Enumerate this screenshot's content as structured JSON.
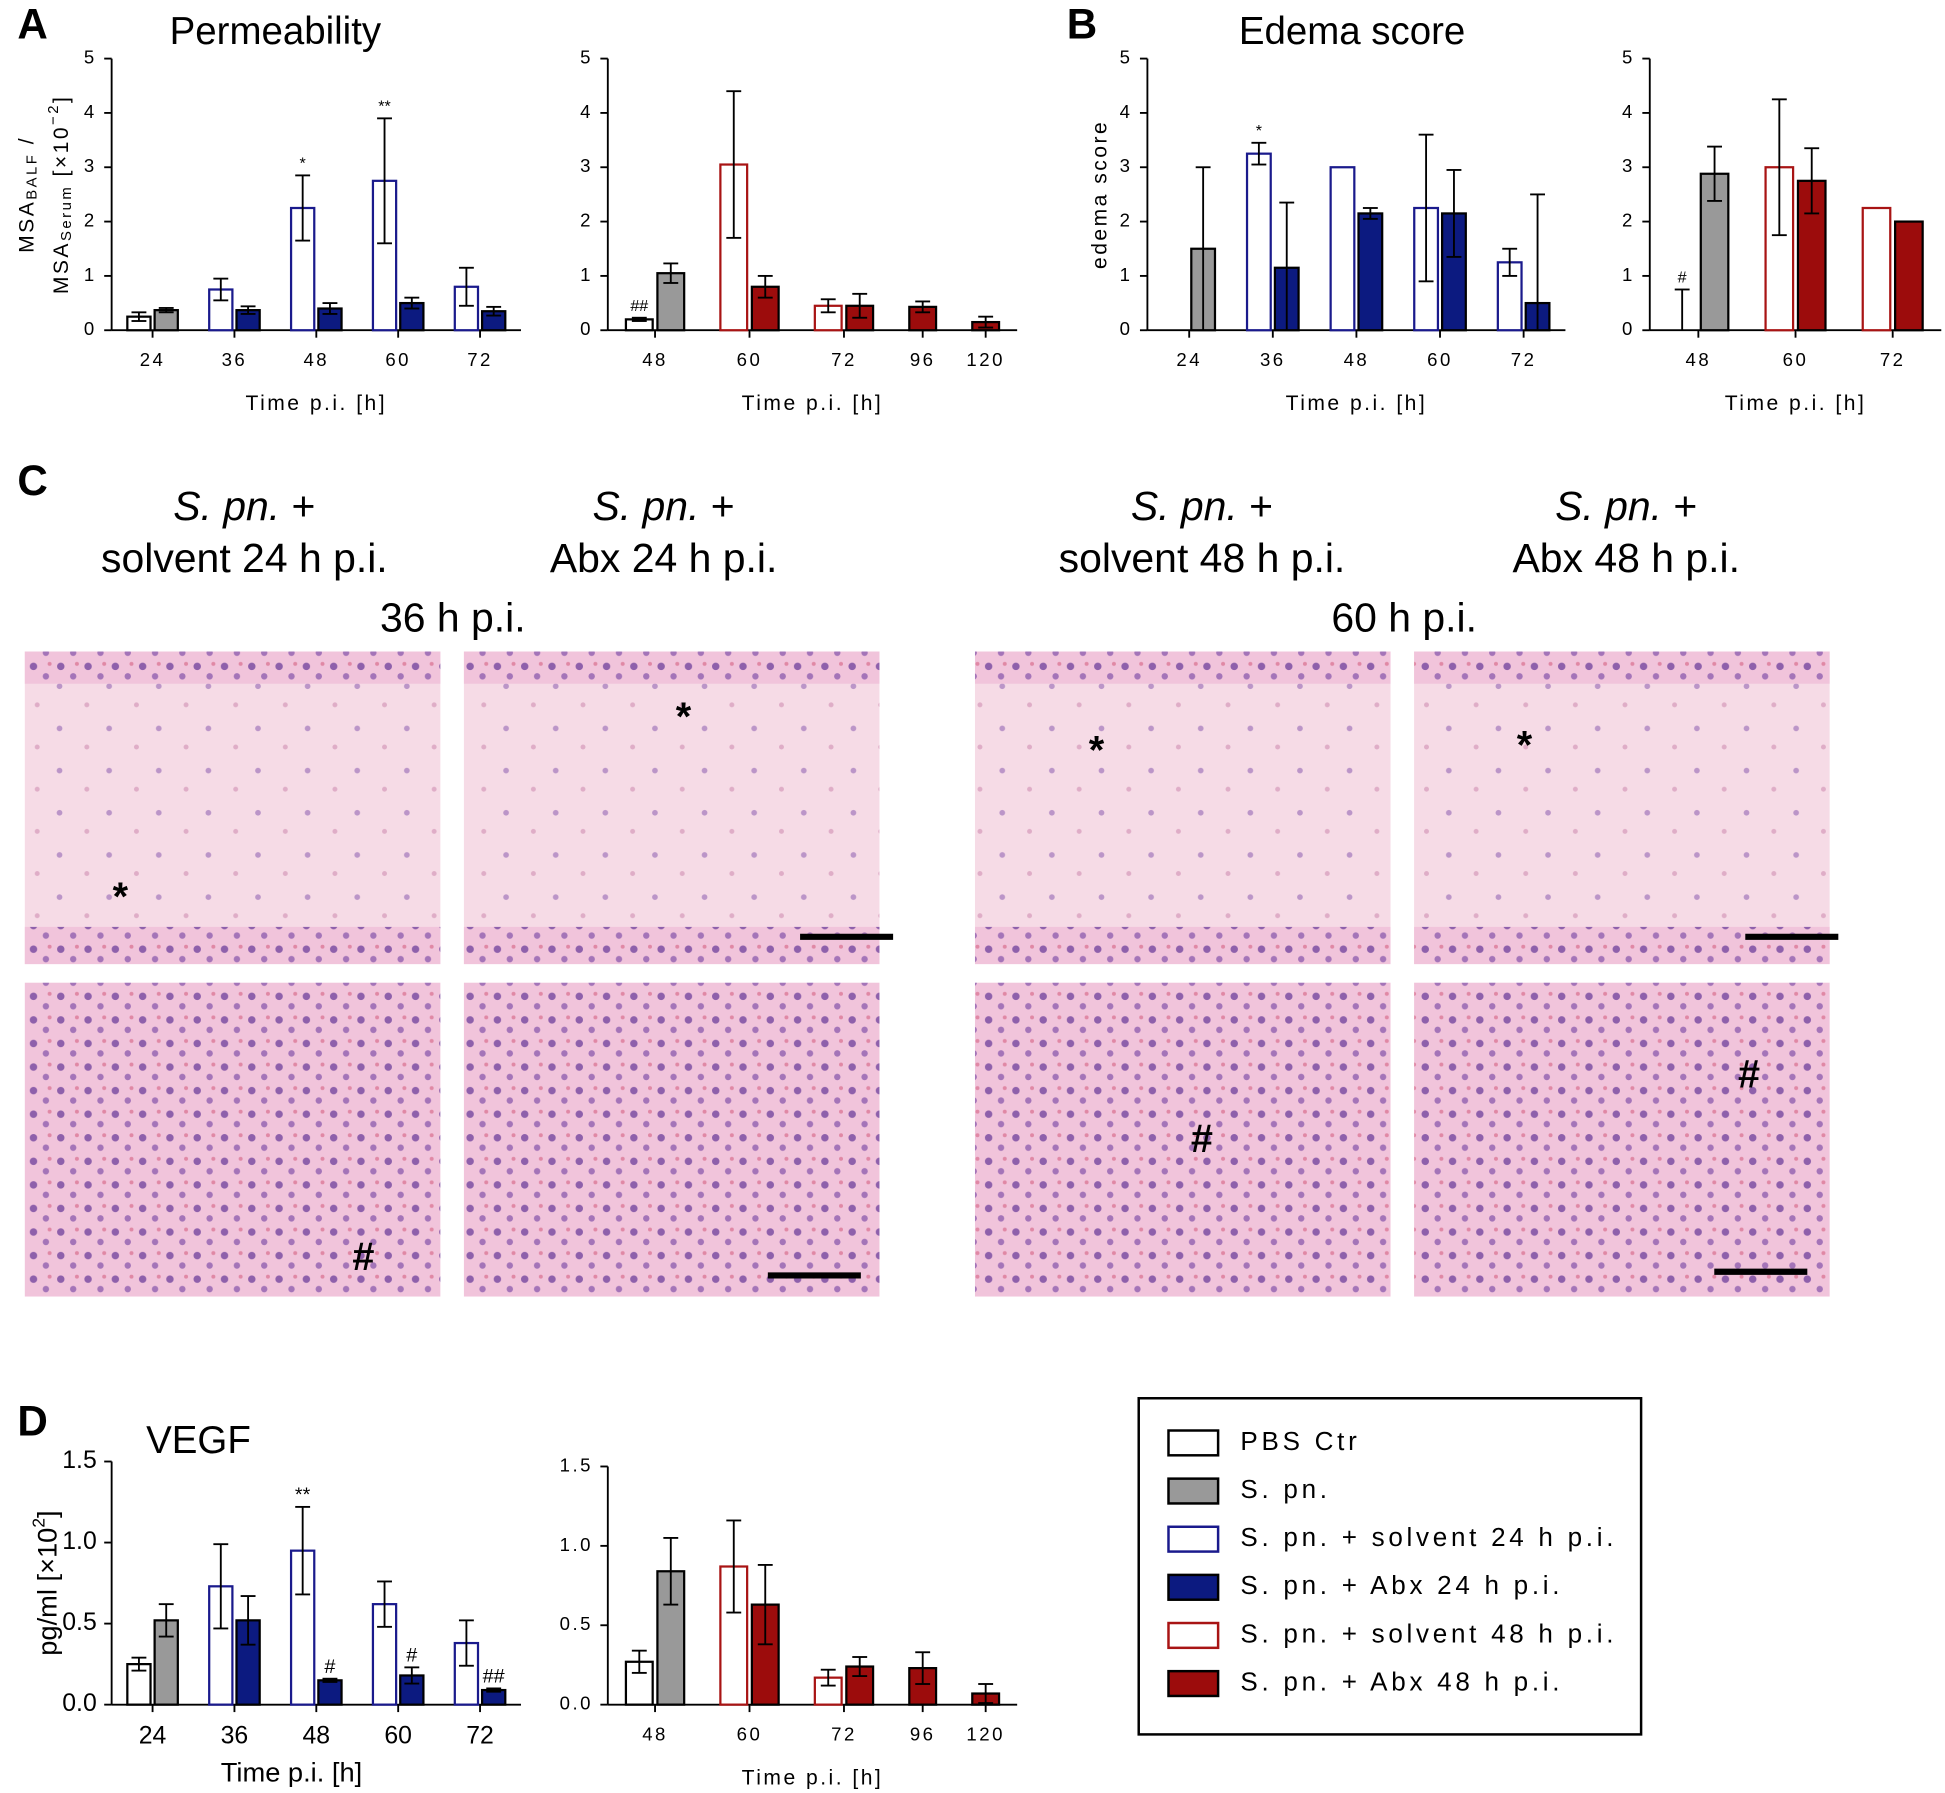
{
  "figure": {
    "panel_labels": [
      "A",
      "B",
      "C",
      "D"
    ]
  },
  "chart_data": [
    {
      "type": "bar",
      "title": "Permeability",
      "ylabel": [
        [
          "MSA",
          "BALF",
          " /"
        ],
        [
          "MSA",
          "Serum",
          " [×10",
          "−2",
          "]"
        ]
      ],
      "xlabel": "Time p.i. [h]",
      "categories": [
        "24",
        "36",
        "48",
        "60",
        "72"
      ],
      "ylim": [
        0,
        5
      ],
      "yticks": [
        0,
        1,
        2,
        3,
        4,
        5
      ],
      "series": [
        {
          "name": "PBS Ctr",
          "values": [
            0.25,
            null,
            null,
            null,
            null
          ],
          "errors": [
            0.08,
            null,
            null,
            null,
            null
          ],
          "annotations": [
            null,
            null,
            null,
            null,
            null
          ]
        },
        {
          "name": "S. pn.",
          "values": [
            0.37,
            null,
            null,
            null,
            null
          ],
          "errors": [
            0.04,
            null,
            null,
            null,
            null
          ],
          "annotations": [
            null,
            null,
            null,
            null,
            null
          ]
        },
        {
          "name": "S. pn. + solvent 24 h p.i.",
          "values": [
            null,
            0.75,
            2.25,
            2.75,
            0.8
          ],
          "errors": [
            null,
            0.2,
            0.6,
            1.15,
            0.35
          ],
          "annotations": [
            null,
            null,
            "*",
            "**",
            null
          ]
        },
        {
          "name": "S. pn. + Abx 24 h p.i.",
          "values": [
            null,
            0.37,
            0.4,
            0.5,
            0.35
          ],
          "errors": [
            null,
            0.07,
            0.1,
            0.1,
            0.08
          ],
          "annotations": [
            null,
            null,
            null,
            null,
            null
          ]
        }
      ]
    },
    {
      "type": "bar",
      "xlabel": "Time p.i. [h]",
      "categories": [
        "48",
        "60",
        "72",
        "96",
        "120"
      ],
      "ylim": [
        0,
        5
      ],
      "yticks": [
        0,
        1,
        2,
        3,
        4,
        5
      ],
      "series": [
        {
          "name": "PBS Ctr",
          "values": [
            0.2,
            null,
            null,
            null,
            null
          ],
          "errors": [
            0.03,
            null,
            null,
            null,
            null
          ],
          "annotations": [
            "##",
            null,
            null,
            null,
            null
          ]
        },
        {
          "name": "S. pn.",
          "values": [
            1.05,
            null,
            null,
            null,
            null
          ],
          "errors": [
            0.18,
            null,
            null,
            null,
            null
          ],
          "annotations": [
            null,
            null,
            null,
            null,
            null
          ]
        },
        {
          "name": "S. pn. + solvent 48 h p.i.",
          "values": [
            null,
            3.05,
            0.45,
            null,
            null
          ],
          "errors": [
            null,
            1.35,
            0.12,
            null,
            null
          ],
          "annotations": [
            null,
            null,
            null,
            null,
            null
          ]
        },
        {
          "name": "S. pn. + Abx 48 h p.i.",
          "values": [
            null,
            0.8,
            0.45,
            0.43,
            0.15
          ],
          "errors": [
            null,
            0.2,
            0.22,
            0.1,
            0.1
          ],
          "annotations": [
            null,
            null,
            null,
            null,
            null
          ]
        }
      ]
    },
    {
      "type": "bar",
      "title": "Edema score",
      "ylabel": [
        [
          "edema score"
        ]
      ],
      "xlabel": "Time p.i. [h]",
      "categories": [
        "24",
        "36",
        "48",
        "60",
        "72"
      ],
      "ylim": [
        0,
        5
      ],
      "yticks": [
        0,
        1,
        2,
        3,
        4,
        5
      ],
      "series": [
        {
          "name": "PBS Ctr",
          "values": [
            0,
            null,
            null,
            null,
            null
          ],
          "errors": [
            null,
            null,
            null,
            null,
            null
          ],
          "annotations": [
            null,
            null,
            null,
            null,
            null
          ]
        },
        {
          "name": "S. pn.",
          "values": [
            1.5,
            null,
            null,
            null,
            null
          ],
          "errors": [
            1.5,
            null,
            null,
            null,
            null
          ],
          "annotations": [
            null,
            null,
            null,
            null,
            null
          ]
        },
        {
          "name": "S. pn. + solvent 24 h p.i.",
          "values": [
            null,
            3.25,
            3.0,
            2.25,
            1.25
          ],
          "errors": [
            null,
            0.2,
            null,
            1.35,
            0.25
          ],
          "annotations": [
            null,
            "*",
            null,
            null,
            null
          ]
        },
        {
          "name": "S. pn. + Abx 24 h p.i.",
          "values": [
            null,
            1.15,
            2.15,
            2.15,
            0.5
          ],
          "errors": [
            null,
            1.2,
            0.1,
            0.8,
            2.0
          ],
          "annotations": [
            null,
            null,
            null,
            null,
            null
          ]
        }
      ]
    },
    {
      "type": "bar",
      "xlabel": "Time p.i. [h]",
      "categories": [
        "48",
        "60",
        "72"
      ],
      "ylim": [
        0,
        5
      ],
      "yticks": [
        0,
        1,
        2,
        3,
        4,
        5
      ],
      "series": [
        {
          "name": "PBS Ctr",
          "values": [
            0,
            null,
            null
          ],
          "errors": [
            0.75,
            null,
            null
          ],
          "annotations": [
            "#",
            null,
            null
          ]
        },
        {
          "name": "S. pn.",
          "values": [
            2.88,
            null,
            null
          ],
          "errors": [
            0.5,
            null,
            null
          ],
          "annotations": [
            null,
            null,
            null
          ]
        },
        {
          "name": "S. pn. + solvent 48 h p.i.",
          "values": [
            null,
            3.0,
            2.25
          ],
          "errors": [
            null,
            1.25,
            null
          ],
          "annotations": [
            null,
            null,
            null
          ]
        },
        {
          "name": "S. pn. + Abx 48 h p.i.",
          "values": [
            null,
            2.75,
            2.0
          ],
          "errors": [
            null,
            0.6,
            null
          ],
          "annotations": [
            null,
            null,
            null
          ]
        }
      ]
    },
    {
      "type": "bar",
      "title": "VEGF",
      "ylabel": [
        [
          "pg/ml [×10",
          "2",
          "]"
        ]
      ],
      "xlabel": "Time p.i. [h]",
      "categories": [
        "24",
        "36",
        "48",
        "60",
        "72"
      ],
      "ylim": [
        0,
        1.5
      ],
      "yticks": [
        {
          "value": 0,
          "label": "0.0"
        },
        0.5,
        {
          "value": 1,
          "label": "1.0"
        },
        1.5
      ],
      "series": [
        {
          "name": "PBS Ctr",
          "values": [
            0.25,
            null,
            null,
            null,
            null
          ],
          "errors": [
            0.04,
            null,
            null,
            null,
            null
          ],
          "annotations": [
            null,
            null,
            null,
            null,
            null
          ]
        },
        {
          "name": "S. pn.",
          "values": [
            0.52,
            null,
            null,
            null,
            null
          ],
          "errors": [
            0.1,
            null,
            null,
            null,
            null
          ],
          "annotations": [
            null,
            null,
            null,
            null,
            null
          ]
        },
        {
          "name": "S. pn. + solvent 24 h p.i.",
          "values": [
            null,
            0.73,
            0.95,
            0.62,
            0.38
          ],
          "errors": [
            null,
            0.26,
            0.27,
            0.14,
            0.14
          ],
          "annotations": [
            null,
            null,
            "**",
            null,
            null
          ]
        },
        {
          "name": "S. pn. + Abx 24 h p.i.",
          "values": [
            null,
            0.52,
            0.15,
            0.18,
            0.09
          ],
          "errors": [
            null,
            0.15,
            0.01,
            0.05,
            0.01
          ],
          "annotations": [
            null,
            null,
            "#",
            "#",
            "##"
          ]
        }
      ]
    },
    {
      "type": "bar",
      "xlabel": "Time p.i. [h]",
      "categories": [
        "48",
        "60",
        "72",
        "96",
        "120"
      ],
      "ylim": [
        0,
        1.5
      ],
      "yticks": [
        {
          "value": 0,
          "label": "0.0"
        },
        0.5,
        {
          "value": 1,
          "label": "1.0"
        },
        1.5
      ],
      "series": [
        {
          "name": "PBS Ctr",
          "values": [
            0.27,
            null,
            null,
            null,
            null
          ],
          "errors": [
            0.07,
            null,
            null,
            null,
            null
          ],
          "annotations": [
            null,
            null,
            null,
            null,
            null
          ]
        },
        {
          "name": "S. pn.",
          "values": [
            0.84,
            null,
            null,
            null,
            null
          ],
          "errors": [
            0.21,
            null,
            null,
            null,
            null
          ],
          "annotations": [
            null,
            null,
            null,
            null,
            null
          ]
        },
        {
          "name": "S. pn. + solvent 48 h p.i.",
          "values": [
            null,
            0.87,
            0.17,
            null,
            null
          ],
          "errors": [
            null,
            0.29,
            0.05,
            null,
            null
          ],
          "annotations": [
            null,
            null,
            null,
            null,
            null
          ]
        },
        {
          "name": "S. pn. + Abx 48 h p.i.",
          "values": [
            null,
            0.63,
            0.24,
            0.23,
            0.07
          ],
          "errors": [
            null,
            0.25,
            0.06,
            0.1,
            0.06
          ],
          "annotations": [
            null,
            null,
            null,
            null,
            null
          ]
        }
      ]
    }
  ],
  "legend": {
    "entries": [
      {
        "name": "PBS Ctr",
        "color": "#000000",
        "filled": false
      },
      {
        "name": "S. pn.",
        "color": "#999999",
        "filled": true
      },
      {
        "name": "S. pn. + solvent 24 h p.i.",
        "color": "#1a1a8c",
        "filled": false
      },
      {
        "name": "S. pn. + Abx 24 h p.i.",
        "color": "#0c1a80",
        "filled": true
      },
      {
        "name": "S. pn. + solvent 48 h p.i.",
        "color": "#a81414",
        "filled": false
      },
      {
        "name": "S. pn. + Abx 48 h p.i.",
        "color": "#9c0c0c",
        "filled": true
      }
    ]
  },
  "histology": {
    "headings": [
      {
        "italic": "S. pn.",
        "plus": " +",
        "line2": "solvent 24 h p.i."
      },
      {
        "italic": "S. pn.",
        "plus": " +",
        "line2": "Abx 24 h p.i."
      },
      {
        "italic": "S. pn.",
        "plus": " +",
        "line2": "solvent 48 h p.i."
      },
      {
        "italic": "S. pn.",
        "plus": " +",
        "line2": "Abx 48 h p.i."
      }
    ],
    "timepoints": [
      "36 h p.i.",
      "60 h p.i."
    ],
    "markers": [
      "*",
      "*",
      "*",
      "*",
      "#",
      "#",
      "#"
    ]
  }
}
